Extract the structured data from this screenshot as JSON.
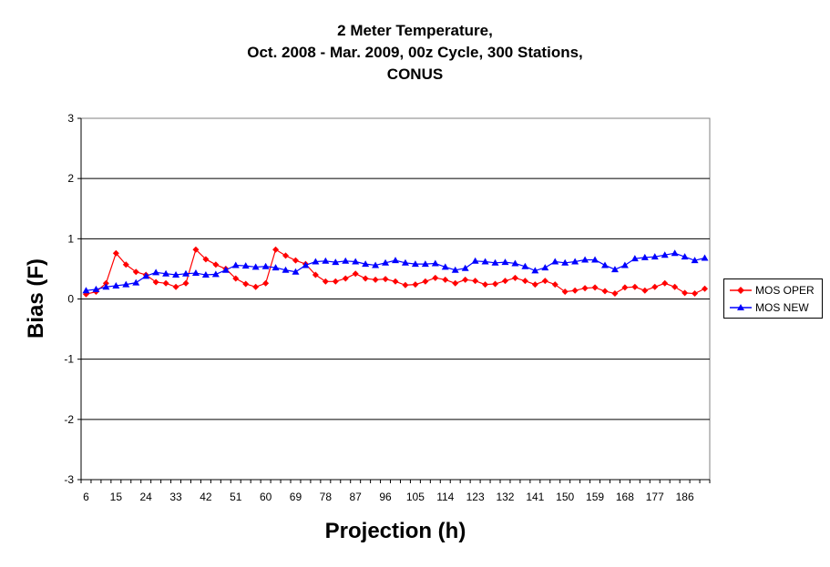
{
  "chart_data": {
    "type": "line",
    "title": [
      "2 Meter Temperature,",
      "Oct. 2008 - Mar. 2009, 00z Cycle, 300 Stations,",
      "CONUS"
    ],
    "xlabel": "Projection (h)",
    "ylabel": "Bias (F)",
    "ylim": [
      -3,
      3
    ],
    "yticks": [
      "3",
      "2",
      "1",
      "0",
      "-1",
      "-2",
      "-3"
    ],
    "x": [
      6,
      9,
      12,
      15,
      18,
      21,
      24,
      27,
      30,
      33,
      36,
      39,
      42,
      45,
      48,
      51,
      54,
      57,
      60,
      63,
      66,
      69,
      72,
      75,
      78,
      81,
      84,
      87,
      90,
      93,
      96,
      99,
      102,
      105,
      108,
      111,
      114,
      117,
      120,
      123,
      126,
      129,
      132,
      135,
      138,
      141,
      144,
      147,
      150,
      153,
      156,
      159,
      162,
      165,
      168,
      171,
      174,
      177,
      180,
      183,
      186,
      189,
      192
    ],
    "xtick_labels": [
      "6",
      "15",
      "24",
      "33",
      "42",
      "51",
      "60",
      "69",
      "78",
      "87",
      "96",
      "105",
      "114",
      "123",
      "132",
      "141",
      "150",
      "159",
      "168",
      "177",
      "186"
    ],
    "grid": "horizontal",
    "legend_position": "right",
    "series": [
      {
        "name": "MOS OPER",
        "color": "#ff0000",
        "marker": "diamond",
        "values": [
          0.08,
          0.12,
          0.26,
          0.76,
          0.57,
          0.45,
          0.4,
          0.28,
          0.26,
          0.2,
          0.26,
          0.82,
          0.66,
          0.57,
          0.5,
          0.34,
          0.25,
          0.2,
          0.26,
          0.82,
          0.72,
          0.64,
          0.58,
          0.4,
          0.29,
          0.29,
          0.34,
          0.42,
          0.34,
          0.32,
          0.33,
          0.29,
          0.23,
          0.24,
          0.29,
          0.35,
          0.32,
          0.26,
          0.32,
          0.3,
          0.24,
          0.25,
          0.3,
          0.35,
          0.3,
          0.24,
          0.3,
          0.24,
          0.12,
          0.14,
          0.18,
          0.19,
          0.13,
          0.09,
          0.19,
          0.2,
          0.14,
          0.2,
          0.26,
          0.2,
          0.1,
          0.09,
          0.17
        ]
      },
      {
        "name": "MOS NEW",
        "color": "#0000ff",
        "marker": "triangle",
        "values": [
          0.14,
          0.16,
          0.2,
          0.22,
          0.24,
          0.27,
          0.38,
          0.44,
          0.42,
          0.4,
          0.42,
          0.43,
          0.4,
          0.41,
          0.48,
          0.56,
          0.55,
          0.53,
          0.54,
          0.52,
          0.48,
          0.45,
          0.56,
          0.62,
          0.63,
          0.61,
          0.63,
          0.62,
          0.58,
          0.56,
          0.6,
          0.64,
          0.6,
          0.58,
          0.58,
          0.59,
          0.53,
          0.48,
          0.51,
          0.63,
          0.62,
          0.6,
          0.61,
          0.59,
          0.54,
          0.47,
          0.52,
          0.62,
          0.6,
          0.62,
          0.65,
          0.65,
          0.56,
          0.49,
          0.56,
          0.67,
          0.69,
          0.7,
          0.73,
          0.76,
          0.7,
          0.64,
          0.68
        ]
      }
    ]
  }
}
